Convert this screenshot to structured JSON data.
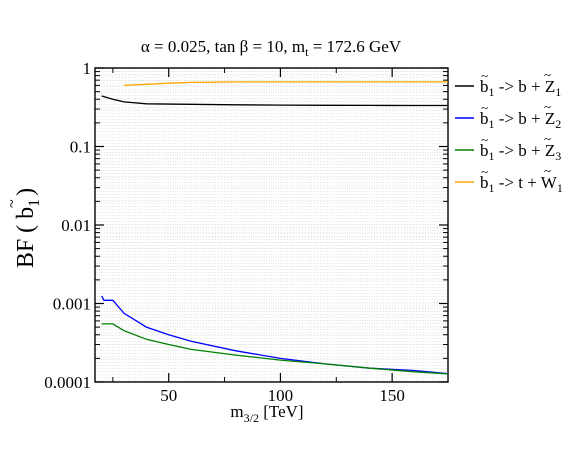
{
  "chart_data": {
    "type": "line",
    "title": {
      "main": "α = 0.025, tan β = 10, m",
      "sub": "t",
      "tail": " = 172.6 GeV"
    },
    "xlabel": {
      "main": "m",
      "sub": "3/2",
      "tail": " [TeV]"
    },
    "ylabel": {
      "main": "BF ( ",
      "sym": "b",
      "sub": "1",
      "tail": ")"
    },
    "xlim": [
      17,
      175
    ],
    "ylim": [
      0.0001,
      1
    ],
    "yscale": "log",
    "grid": true,
    "legend_position": "right",
    "x_ticks": [
      50,
      100,
      150
    ],
    "x_tick_labels": [
      "50",
      "100",
      "150"
    ],
    "y_ticks": [
      0.0001,
      0.001,
      0.01,
      0.1,
      1
    ],
    "y_tick_labels": [
      "0.0001",
      "0.001",
      "0.01",
      "0.1",
      "1"
    ],
    "series": [
      {
        "name": "b1 -> b + Z1",
        "label": {
          "main": "b",
          "sub": "1",
          "mid": " -> b + ",
          "sym": "Z",
          "sub2": "1"
        },
        "color": "#000000",
        "x": [
          20,
          25,
          30,
          40,
          60,
          80,
          100,
          120,
          140,
          160,
          175
        ],
        "y": [
          0.44,
          0.4,
          0.37,
          0.35,
          0.345,
          0.34,
          0.337,
          0.335,
          0.334,
          0.333,
          0.333
        ]
      },
      {
        "name": "b1 -> b + Z2",
        "label": {
          "main": "b",
          "sub": "1",
          "mid": " -> b + ",
          "sym": "Z",
          "sub2": "2"
        },
        "color": "#0000ff",
        "x": [
          20,
          21,
          22,
          25,
          30,
          40,
          50,
          60,
          80,
          100,
          120,
          140,
          160,
          175
        ],
        "y": [
          0.00125,
          0.0011,
          0.0011,
          0.0011,
          0.00075,
          0.0005,
          0.0004,
          0.00033,
          0.00025,
          0.0002,
          0.00017,
          0.00015,
          0.00014,
          0.000128
        ]
      },
      {
        "name": "b1 -> b + Z3",
        "label": {
          "main": "b",
          "sub": "1",
          "mid": " -> b + ",
          "sym": "Z",
          "sub2": "3"
        },
        "color": "#008000",
        "x": [
          20,
          22,
          25,
          30,
          40,
          50,
          60,
          80,
          100,
          120,
          140,
          160,
          175
        ],
        "y": [
          0.00055,
          0.00055,
          0.00055,
          0.00045,
          0.00035,
          0.0003,
          0.00026,
          0.00022,
          0.00019,
          0.00017,
          0.00015,
          0.000135,
          0.000127
        ]
      },
      {
        "name": "b1 -> t + W1",
        "label": {
          "main": "b",
          "sub": "1",
          "mid": " -> t + ",
          "sym": "W",
          "sub2": "1"
        },
        "color": "#ffa500",
        "x": [
          30,
          40,
          50,
          60,
          70,
          80,
          100,
          120,
          140,
          160,
          175
        ],
        "y": [
          0.6,
          0.62,
          0.64,
          0.655,
          0.66,
          0.665,
          0.665,
          0.665,
          0.665,
          0.665,
          0.665
        ]
      }
    ]
  }
}
